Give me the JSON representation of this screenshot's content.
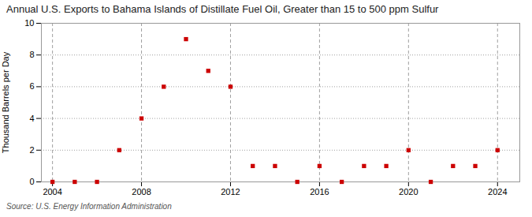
{
  "chart_data": {
    "type": "scatter",
    "title": "Annual U.S. Exports to Bahama Islands of Distillate Fuel Oil, Greater than 15 to 500 ppm Sulfur",
    "y_label": "Thousand Barrels per Day",
    "caption": "Source: U.S. Energy Information Administration",
    "x": [
      2004,
      2005,
      2006,
      2007,
      2008,
      2009,
      2010,
      2011,
      2012,
      2013,
      2014,
      2015,
      2016,
      2017,
      2018,
      2019,
      2020,
      2021,
      2022,
      2023,
      2024
    ],
    "values": [
      0.0,
      0.0,
      0.0,
      2.0,
      4.0,
      6.0,
      9.0,
      7.0,
      6.0,
      1.0,
      1.0,
      0.0,
      1.0,
      0.0,
      1.0,
      1.0,
      2.0,
      0.0,
      1.0,
      1.0,
      2.0
    ],
    "color": "#cc0000",
    "marker": "square",
    "xlim": [
      2003.5,
      2025.0
    ],
    "ylim": [
      0,
      10
    ],
    "xticks": [
      2004,
      2008,
      2012,
      2016,
      2020,
      2024
    ],
    "yticks": [
      0,
      2,
      4,
      6,
      8,
      10
    ],
    "grid": true
  }
}
